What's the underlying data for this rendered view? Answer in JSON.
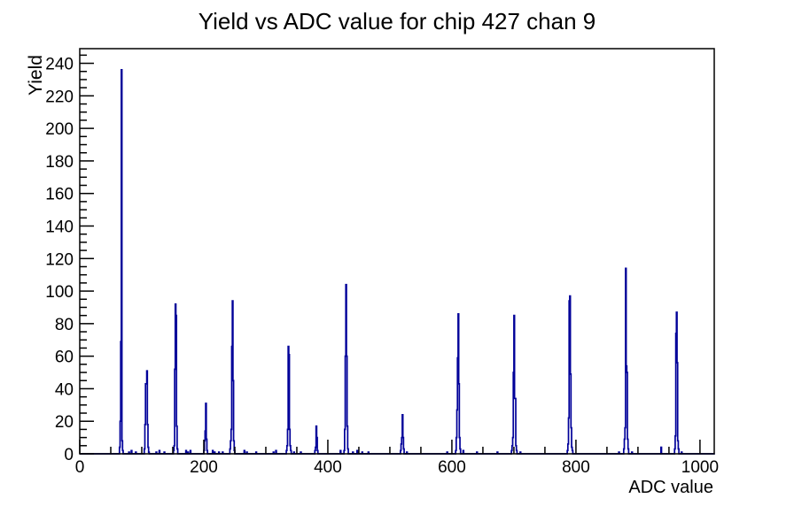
{
  "chart_data": {
    "type": "bar",
    "title": "Yield vs ADC value for chip 427 chan 9",
    "xlabel": "ADC value",
    "ylabel": "Yield",
    "xlim": [
      0,
      1023
    ],
    "ylim": [
      0,
      249
    ],
    "grid": false,
    "legend": "none",
    "line_color": "#000099",
    "axis_color": "#000000",
    "background_color": "#ffffff",
    "x_tick_values": [
      0,
      200,
      400,
      600,
      800,
      1000
    ],
    "x_tick_labels": [
      "0",
      "200",
      "400",
      "600",
      "800",
      "1000"
    ],
    "x_minor_step": 50,
    "y_tick_values": [
      0,
      20,
      40,
      60,
      80,
      100,
      120,
      140,
      160,
      180,
      200,
      220,
      240
    ],
    "y_tick_labels": [
      "0",
      "20",
      "40",
      "60",
      "80",
      "100",
      "120",
      "140",
      "160",
      "180",
      "200",
      "220",
      "240"
    ],
    "y_minor_step": 5,
    "bins": [
      [
        64,
        4
      ],
      [
        65,
        20
      ],
      [
        66,
        69
      ],
      [
        67,
        236
      ],
      [
        68,
        8
      ],
      [
        69,
        2
      ],
      [
        79,
        1
      ],
      [
        83,
        2
      ],
      [
        90,
        1
      ],
      [
        104,
        3
      ],
      [
        105,
        18
      ],
      [
        106,
        43
      ],
      [
        107,
        43
      ],
      [
        108,
        51
      ],
      [
        109,
        18
      ],
      [
        110,
        4
      ],
      [
        111,
        1
      ],
      [
        123,
        1
      ],
      [
        128,
        2
      ],
      [
        136,
        1
      ],
      [
        151,
        2
      ],
      [
        152,
        5
      ],
      [
        153,
        52
      ],
      [
        154,
        92
      ],
      [
        155,
        85
      ],
      [
        156,
        17
      ],
      [
        157,
        3
      ],
      [
        171,
        2
      ],
      [
        174,
        1
      ],
      [
        178,
        2
      ],
      [
        200,
        2
      ],
      [
        201,
        8
      ],
      [
        202,
        14
      ],
      [
        203,
        31
      ],
      [
        204,
        9
      ],
      [
        205,
        2
      ],
      [
        214,
        2
      ],
      [
        217,
        1
      ],
      [
        224,
        1
      ],
      [
        230,
        1
      ],
      [
        242,
        3
      ],
      [
        243,
        8
      ],
      [
        244,
        15
      ],
      [
        245,
        66
      ],
      [
        246,
        94
      ],
      [
        247,
        45
      ],
      [
        248,
        8
      ],
      [
        249,
        2
      ],
      [
        265,
        2
      ],
      [
        269,
        1
      ],
      [
        284,
        1
      ],
      [
        312,
        1
      ],
      [
        316,
        2
      ],
      [
        333,
        2
      ],
      [
        334,
        5
      ],
      [
        335,
        15
      ],
      [
        336,
        66
      ],
      [
        337,
        61
      ],
      [
        338,
        15
      ],
      [
        339,
        5
      ],
      [
        340,
        2
      ],
      [
        345,
        1
      ],
      [
        356,
        1
      ],
      [
        379,
        2
      ],
      [
        380,
        4
      ],
      [
        381,
        17
      ],
      [
        382,
        10
      ],
      [
        383,
        2
      ],
      [
        420,
        2
      ],
      [
        426,
        2
      ],
      [
        427,
        15
      ],
      [
        428,
        60
      ],
      [
        429,
        104
      ],
      [
        430,
        60
      ],
      [
        431,
        17
      ],
      [
        432,
        3
      ],
      [
        440,
        1
      ],
      [
        447,
        2
      ],
      [
        455,
        1
      ],
      [
        465,
        1
      ],
      [
        517,
        2
      ],
      [
        518,
        6
      ],
      [
        519,
        10
      ],
      [
        520,
        24
      ],
      [
        521,
        10
      ],
      [
        522,
        3
      ],
      [
        527,
        1
      ],
      [
        592,
        1
      ],
      [
        606,
        2
      ],
      [
        607,
        10
      ],
      [
        608,
        27
      ],
      [
        609,
        59
      ],
      [
        610,
        86
      ],
      [
        611,
        43
      ],
      [
        612,
        10
      ],
      [
        613,
        3
      ],
      [
        618,
        2
      ],
      [
        640,
        1
      ],
      [
        673,
        1
      ],
      [
        696,
        2
      ],
      [
        697,
        5
      ],
      [
        698,
        10
      ],
      [
        699,
        50
      ],
      [
        700,
        85
      ],
      [
        701,
        34
      ],
      [
        702,
        34
      ],
      [
        703,
        5
      ],
      [
        704,
        2
      ],
      [
        710,
        1
      ],
      [
        786,
        2
      ],
      [
        787,
        6
      ],
      [
        788,
        22
      ],
      [
        789,
        94
      ],
      [
        790,
        97
      ],
      [
        791,
        49
      ],
      [
        792,
        16
      ],
      [
        793,
        4
      ],
      [
        794,
        2
      ],
      [
        869,
        1
      ],
      [
        877,
        3
      ],
      [
        878,
        9
      ],
      [
        879,
        16
      ],
      [
        880,
        114
      ],
      [
        881,
        54
      ],
      [
        882,
        50
      ],
      [
        883,
        9
      ],
      [
        884,
        3
      ],
      [
        890,
        1
      ],
      [
        937,
        4
      ],
      [
        959,
        3
      ],
      [
        960,
        11
      ],
      [
        961,
        74
      ],
      [
        962,
        87
      ],
      [
        963,
        56
      ],
      [
        964,
        8
      ],
      [
        965,
        3
      ],
      [
        970,
        1
      ]
    ]
  }
}
